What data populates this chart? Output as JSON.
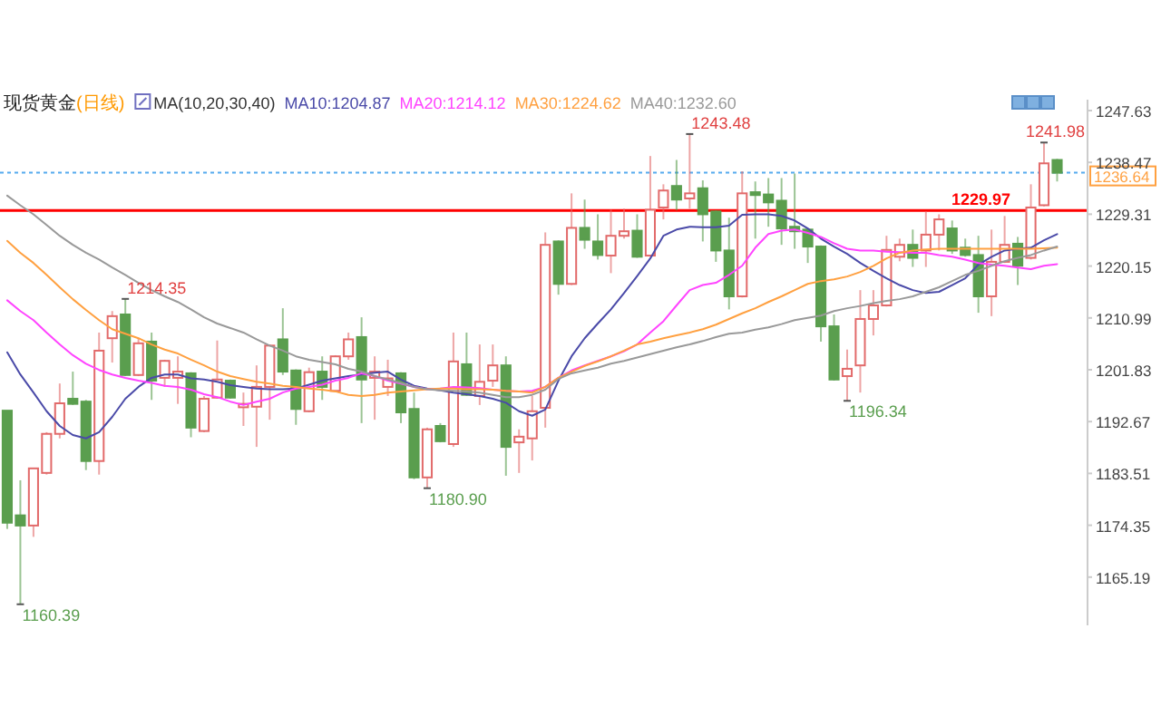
{
  "chart_data": {
    "type": "candlestick",
    "title": "现货黄金",
    "subtitle": "(日线)",
    "legend_title": "MA(10,20,30,40)",
    "legend": "top",
    "tick_labels": "y",
    "grid": false,
    "categories": [
      null,
      null,
      null,
      null,
      null,
      null,
      null,
      null,
      null,
      null,
      null,
      null,
      null,
      null,
      null,
      null,
      null,
      null,
      null,
      null,
      null,
      null,
      null,
      null,
      null,
      null,
      null,
      null,
      null,
      null,
      null,
      null,
      null,
      null,
      null,
      null,
      null,
      null,
      null,
      null,
      null,
      null,
      null,
      null,
      null,
      null,
      null,
      null,
      null,
      null,
      null,
      null,
      null,
      null,
      null,
      null,
      null,
      null,
      null,
      null,
      null,
      null,
      null,
      null,
      null,
      null,
      null,
      null,
      null,
      null,
      null,
      null,
      null,
      null,
      null,
      null,
      null,
      null,
      null,
      null,
      null
    ],
    "ylim": [
      1156.67,
      1249.55
    ],
    "yticks": [
      1165.19,
      1174.35,
      1183.51,
      1192.67,
      1201.83,
      1210.99,
      1220.15,
      1229.31,
      1238.47,
      1247.63
    ],
    "ohlc": [
      [
        1194.6,
        1194.6,
        1173.7,
        1174.8
      ],
      [
        1176.1,
        1182.3,
        1160.39,
        1174.3
      ],
      [
        1174.3,
        1184.4,
        1172.3,
        1184.4
      ],
      [
        1183.6,
        1190.8,
        1183.3,
        1190.5
      ],
      [
        1190.5,
        1199.4,
        1189.7,
        1195.9
      ],
      [
        1196.7,
        1201.5,
        1195.6,
        1195.8
      ],
      [
        1196.2,
        1196.5,
        1184.1,
        1185.7
      ],
      [
        1185.7,
        1208.4,
        1183.3,
        1205.2
      ],
      [
        1207.4,
        1212.2,
        1203.1,
        1211.3
      ],
      [
        1211.6,
        1214.35,
        1200.7,
        1200.9
      ],
      [
        1200.9,
        1207.4,
        1200.7,
        1206.5
      ],
      [
        1206.8,
        1208.4,
        1196.5,
        1199.9
      ],
      [
        1200.4,
        1203.6,
        1198.8,
        1203.4
      ],
      [
        1200.4,
        1204.2,
        1195.8,
        1201.5
      ],
      [
        1201.2,
        1201.4,
        1189.9,
        1191.6
      ],
      [
        1191.0,
        1197.2,
        1190.8,
        1196.7
      ],
      [
        1196.9,
        1207.0,
        1196.7,
        1200.1
      ],
      [
        1199.9,
        1200.1,
        1196.7,
        1196.9
      ],
      [
        1195.2,
        1197.8,
        1191.9,
        1195.8
      ],
      [
        1195.3,
        1202.6,
        1188.2,
        1198.8
      ],
      [
        1198.8,
        1206.3,
        1193.0,
        1206.1
      ],
      [
        1207.2,
        1212.7,
        1200.9,
        1201.5
      ],
      [
        1201.7,
        1201.9,
        1192.1,
        1194.9
      ],
      [
        1194.5,
        1202.2,
        1194.3,
        1201.4
      ],
      [
        1201.5,
        1204.2,
        1196.5,
        1198.8
      ],
      [
        1198.1,
        1204.4,
        1197.9,
        1204.2
      ],
      [
        1204.2,
        1208.4,
        1203.6,
        1207.2
      ],
      [
        1207.6,
        1211.1,
        1192.4,
        1200.1
      ],
      [
        1200.4,
        1204.2,
        1193.0,
        1201.5
      ],
      [
        1198.8,
        1203.6,
        1197.2,
        1200.3
      ],
      [
        1201.2,
        1201.4,
        1192.4,
        1194.3
      ],
      [
        1194.9,
        1197.8,
        1182.5,
        1182.8
      ],
      [
        1182.8,
        1191.6,
        1180.9,
        1191.3
      ],
      [
        1191.9,
        1192.4,
        1189.0,
        1189.2
      ],
      [
        1188.7,
        1208.4,
        1188.2,
        1203.3
      ],
      [
        1202.8,
        1208.4,
        1197.2,
        1197.4
      ],
      [
        1197.2,
        1206.3,
        1195.6,
        1199.7
      ],
      [
        1199.9,
        1206.3,
        1198.8,
        1202.6
      ],
      [
        1202.6,
        1204.2,
        1183.1,
        1188.2
      ],
      [
        1189.0,
        1191.3,
        1183.6,
        1190.0
      ],
      [
        1189.7,
        1197.2,
        1185.8,
        1194.5
      ],
      [
        1195.1,
        1226.1,
        1191.6,
        1223.9
      ],
      [
        1224.5,
        1224.7,
        1215.1,
        1217.0
      ],
      [
        1217.0,
        1233.0,
        1216.8,
        1226.9
      ],
      [
        1226.9,
        1231.9,
        1223.2,
        1224.8
      ],
      [
        1224.5,
        1229.3,
        1221.3,
        1222.1
      ],
      [
        1222.0,
        1230.1,
        1218.9,
        1225.5
      ],
      [
        1225.5,
        1230.3,
        1225.0,
        1226.3
      ],
      [
        1226.4,
        1229.3,
        1221.6,
        1221.8
      ],
      [
        1222.0,
        1239.6,
        1221.8,
        1230.1
      ],
      [
        1230.5,
        1234.6,
        1228.4,
        1233.5
      ],
      [
        1234.3,
        1238.9,
        1230.0,
        1231.9
      ],
      [
        1232.1,
        1243.48,
        1230.3,
        1233.0
      ],
      [
        1233.9,
        1235.3,
        1224.5,
        1229.3
      ],
      [
        1229.8,
        1230.0,
        1220.9,
        1222.9
      ],
      [
        1222.9,
        1228.7,
        1212.5,
        1214.8
      ],
      [
        1214.8,
        1236.9,
        1214.6,
        1233.0
      ],
      [
        1233.2,
        1235.1,
        1225.0,
        1232.7
      ],
      [
        1232.8,
        1235.7,
        1227.1,
        1231.4
      ],
      [
        1231.7,
        1235.7,
        1223.9,
        1226.8
      ],
      [
        1227.1,
        1236.5,
        1223.2,
        1226.3
      ],
      [
        1226.6,
        1226.8,
        1220.7,
        1223.6
      ],
      [
        1223.6,
        1223.8,
        1206.8,
        1209.5
      ],
      [
        1209.5,
        1211.6,
        1199.9,
        1200.1
      ],
      [
        1200.7,
        1205.4,
        1196.34,
        1202.0
      ],
      [
        1202.6,
        1215.9,
        1197.8,
        1210.8
      ],
      [
        1210.8,
        1215.9,
        1207.9,
        1213.2
      ],
      [
        1213.2,
        1225.5,
        1213.0,
        1223.0
      ],
      [
        1221.8,
        1225.0,
        1221.0,
        1223.9
      ],
      [
        1223.9,
        1226.6,
        1220.0,
        1221.6
      ],
      [
        1222.9,
        1229.8,
        1220.0,
        1225.7
      ],
      [
        1225.7,
        1229.3,
        1222.9,
        1228.4
      ],
      [
        1226.8,
        1228.2,
        1222.3,
        1222.9
      ],
      [
        1223.4,
        1225.0,
        1221.8,
        1222.1
      ],
      [
        1222.1,
        1225.5,
        1211.9,
        1214.8
      ],
      [
        1214.8,
        1226.6,
        1211.3,
        1220.9
      ],
      [
        1220.9,
        1229.0,
        1220.7,
        1223.9
      ],
      [
        1224.1,
        1225.3,
        1216.8,
        1220.2
      ],
      [
        1221.6,
        1234.6,
        1221.3,
        1230.5
      ],
      [
        1230.9,
        1241.98,
        1230.7,
        1238.3
      ],
      [
        1238.9,
        1239.1,
        1235.1,
        1236.64
      ]
    ],
    "series": [
      {
        "type": "line",
        "name": "MA10:1204.87",
        "color": "#4a4aa8",
        "values": [
          1204.9,
          1201.0,
          1197.8,
          1194.5,
          1191.9,
          1190.3,
          1189.7,
          1190.8,
          1193.5,
          1196.7,
          1198.8,
          1200.4,
          1201.0,
          1201.0,
          1200.3,
          1200.1,
          1199.7,
          1199.1,
          1198.8,
          1198.5,
          1198.4,
          1198.4,
          1198.5,
          1199.2,
          1199.9,
          1200.3,
          1200.7,
          1201.0,
          1201.3,
          1201.5,
          1200.1,
          1199.0,
          1198.5,
          1198.2,
          1197.8,
          1197.5,
          1197.2,
          1196.7,
          1196.0,
          1194.5,
          1193.7,
          1194.8,
          1199.9,
          1204.2,
          1207.4,
          1210.0,
          1212.5,
          1215.4,
          1218.4,
          1221.5,
          1225.5,
          1226.6,
          1227.1,
          1227.0,
          1227.0,
          1227.3,
          1229.2,
          1229.3,
          1229.3,
          1229.0,
          1228.2,
          1226.8,
          1225.0,
          1223.6,
          1222.3,
          1220.7,
          1219.3,
          1218.0,
          1216.8,
          1215.9,
          1215.4,
          1215.6,
          1216.8,
          1218.0,
          1220.4,
          1221.8,
          1222.9,
          1223.2,
          1223.4,
          1224.7,
          1225.8
        ]
      },
      {
        "type": "line",
        "name": "MA20:1214.12",
        "color": "#ff44ff",
        "values": [
          1214.1,
          1212.2,
          1210.6,
          1208.4,
          1206.3,
          1204.4,
          1202.9,
          1201.8,
          1201.0,
          1200.4,
          1199.9,
          1199.5,
          1199.0,
          1198.8,
          1198.3,
          1197.5,
          1197.0,
          1196.2,
          1195.6,
          1196.2,
          1196.7,
          1197.8,
          1198.5,
          1198.8,
          1199.2,
          1199.9,
          1200.4,
          1201.2,
          1200.7,
          1199.9,
          1199.4,
          1198.8,
          1198.4,
          1198.5,
          1198.8,
          1198.7,
          1198.6,
          1198.3,
          1198.1,
          1198.0,
          1198.1,
          1198.8,
          1200.4,
          1201.7,
          1202.6,
          1203.4,
          1204.2,
          1205.1,
          1206.3,
          1208.4,
          1210.4,
          1213.2,
          1215.9,
          1216.8,
          1217.2,
          1218.6,
          1220.2,
          1223.4,
          1225.8,
          1226.4,
          1226.6,
          1226.0,
          1225.3,
          1224.2,
          1223.2,
          1222.9,
          1222.9,
          1222.7,
          1222.6,
          1222.5,
          1222.5,
          1222.1,
          1221.8,
          1221.3,
          1220.7,
          1220.4,
          1220.2,
          1219.9,
          1219.6,
          1220.2,
          1220.5
        ]
      },
      {
        "type": "line",
        "name": "MA30:1224.62",
        "color": "#ffa040",
        "values": [
          1224.6,
          1222.5,
          1220.7,
          1218.6,
          1216.4,
          1214.3,
          1212.4,
          1210.6,
          1209.0,
          1208.2,
          1207.4,
          1206.3,
          1205.4,
          1204.7,
          1203.6,
          1202.6,
          1201.5,
          1200.7,
          1200.2,
          1199.7,
          1199.4,
          1199.0,
          1198.8,
          1198.5,
          1198.3,
          1198.0,
          1197.4,
          1197.2,
          1197.4,
          1197.8,
          1198.0,
          1198.2,
          1198.4,
          1198.5,
          1198.5,
          1198.4,
          1198.4,
          1198.3,
          1198.1,
          1198.0,
          1197.8,
          1198.8,
          1200.4,
          1201.5,
          1202.5,
          1203.3,
          1204.2,
          1205.2,
          1206.3,
          1206.8,
          1207.4,
          1207.9,
          1208.4,
          1209.0,
          1209.8,
          1210.8,
          1211.8,
          1212.7,
          1213.8,
          1214.8,
          1215.9,
          1217.0,
          1217.5,
          1217.8,
          1218.3,
          1219.1,
          1220.2,
          1221.5,
          1222.5,
          1222.9,
          1223.1,
          1223.2,
          1223.2,
          1223.2,
          1223.2,
          1223.2,
          1223.2,
          1223.2,
          1223.2,
          1223.3,
          1223.4
        ]
      },
      {
        "type": "line",
        "name": "MA40:1232.60",
        "color": "#999999",
        "values": [
          1232.6,
          1230.9,
          1229.3,
          1227.4,
          1225.5,
          1223.9,
          1222.5,
          1221.3,
          1219.9,
          1218.6,
          1217.2,
          1215.9,
          1214.8,
          1213.8,
          1212.5,
          1211.1,
          1210.0,
          1209.2,
          1208.4,
          1207.2,
          1206.1,
          1205.2,
          1204.2,
          1203.6,
          1203.2,
          1202.8,
          1202.0,
          1201.5,
          1200.7,
          1200.1,
          1199.5,
          1198.8,
          1198.4,
          1198.2,
          1198.1,
          1198.0,
          1197.8,
          1197.4,
          1197.0,
          1197.0,
          1197.4,
          1198.3,
          1200.2,
          1201.2,
          1201.7,
          1202.2,
          1202.9,
          1203.4,
          1204.0,
          1204.6,
          1205.2,
          1205.8,
          1206.3,
          1206.9,
          1207.6,
          1208.2,
          1208.4,
          1208.9,
          1209.3,
          1209.9,
          1210.6,
          1211.0,
          1211.4,
          1212.2,
          1212.7,
          1213.1,
          1213.6,
          1214.0,
          1214.3,
          1214.8,
          1215.6,
          1216.4,
          1217.5,
          1218.6,
          1219.3,
          1220.2,
          1221.0,
          1221.6,
          1222.1,
          1222.9,
          1223.6
        ]
      }
    ],
    "ref_lines": [
      {
        "axis": "y",
        "value": 1229.97,
        "label": "1229.97",
        "color": "#ff0000",
        "line_style": "solid"
      },
      {
        "axis": "y",
        "value": 1236.64,
        "label": "1236.64",
        "color": "#55aaee",
        "line_style": "dotted"
      }
    ],
    "annotations": [
      "1214.35",
      "1160.39",
      "1180.90",
      "1243.48",
      "1196.34",
      "1241.98"
    ]
  }
}
